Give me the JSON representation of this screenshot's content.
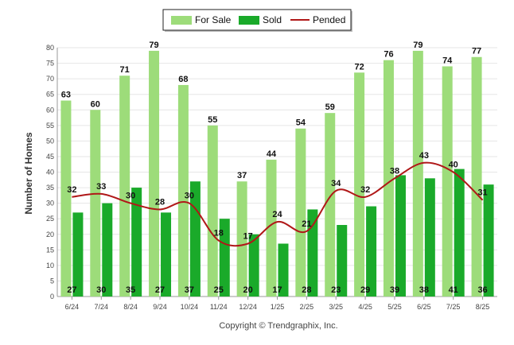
{
  "chart_data": {
    "type": "bar",
    "categories": [
      "6/24",
      "7/24",
      "8/24",
      "9/24",
      "10/24",
      "11/24",
      "12/24",
      "1/25",
      "2/25",
      "3/25",
      "4/25",
      "5/25",
      "6/25",
      "7/25",
      "8/25"
    ],
    "series": [
      {
        "name": "For Sale",
        "type": "bar",
        "color": "#9ddc7a",
        "values": [
          63,
          60,
          71,
          79,
          68,
          55,
          37,
          44,
          54,
          59,
          72,
          76,
          79,
          74,
          77
        ]
      },
      {
        "name": "Sold",
        "type": "bar",
        "color": "#1aaa2a",
        "values": [
          27,
          30,
          35,
          27,
          37,
          25,
          20,
          17,
          28,
          23,
          29,
          39,
          38,
          41,
          36
        ]
      },
      {
        "name": "Pended",
        "type": "line",
        "color": "#b01818",
        "values": [
          32,
          33,
          30,
          28,
          30,
          18,
          17,
          24,
          21,
          34,
          32,
          38,
          43,
          40,
          31
        ]
      }
    ],
    "ylabel": "Number of Homes",
    "ylim": [
      0,
      80
    ],
    "yticks": [
      0,
      5,
      10,
      15,
      20,
      25,
      30,
      35,
      40,
      45,
      50,
      55,
      60,
      65,
      70,
      75,
      80
    ],
    "grid": true,
    "legend_position": "top-center"
  },
  "copyright": "Copyright © Trendgraphix, Inc."
}
